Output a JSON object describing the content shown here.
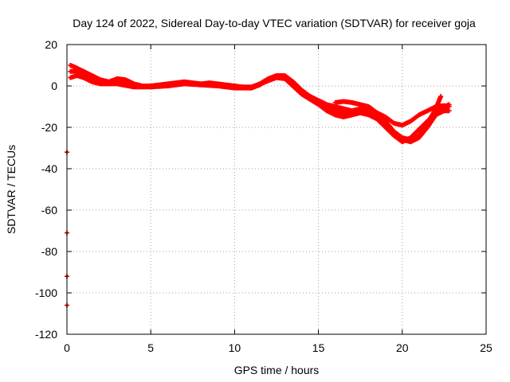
{
  "chart_data": {
    "type": "scatter",
    "title": "Day 124 of 2022, Sidereal Day-to-day VTEC variation (SDTVAR) for receiver goja",
    "xlabel": "GPS time / hours",
    "ylabel": "SDTVAR / TECUs",
    "xlim": [
      0,
      25
    ],
    "ylim": [
      -120,
      20
    ],
    "xticks": [
      0,
      5,
      10,
      15,
      20,
      25
    ],
    "yticks": [
      -120,
      -100,
      -80,
      -60,
      -40,
      -20,
      0,
      20
    ],
    "grid": true,
    "series": [
      {
        "name": "SDTVAR",
        "color": "#ff0000",
        "marker": "plus",
        "tracks": [
          [
            [
              0.2,
              10
            ],
            [
              0.5,
              9
            ],
            [
              1.0,
              7
            ],
            [
              1.5,
              5
            ],
            [
              2.0,
              3
            ],
            [
              2.5,
              2
            ],
            [
              3.0,
              3.5
            ],
            [
              3.5,
              3
            ],
            [
              4.0,
              1
            ],
            [
              4.5,
              0
            ],
            [
              5.0,
              0
            ],
            [
              5.5,
              0.5
            ],
            [
              6.0,
              1
            ],
            [
              6.5,
              1.5
            ],
            [
              7.0,
              2
            ],
            [
              7.5,
              1.5
            ],
            [
              8.0,
              1
            ],
            [
              8.5,
              1.5
            ],
            [
              9.0,
              1
            ],
            [
              9.5,
              0.5
            ],
            [
              10.0,
              0
            ],
            [
              10.5,
              -0.5
            ],
            [
              11.0,
              -0.5
            ],
            [
              11.5,
              1
            ],
            [
              12.0,
              3.5
            ],
            [
              12.5,
              5
            ],
            [
              13.0,
              5
            ],
            [
              13.5,
              2
            ],
            [
              14.0,
              -2
            ],
            [
              14.5,
              -5
            ],
            [
              15.0,
              -7
            ],
            [
              15.5,
              -9
            ],
            [
              16.0,
              -10
            ],
            [
              16.5,
              -11
            ],
            [
              17.0,
              -12
            ],
            [
              17.5,
              -13
            ],
            [
              18.0,
              -13
            ],
            [
              18.5,
              -14
            ],
            [
              19.0,
              -17
            ],
            [
              19.5,
              -22
            ],
            [
              20.0,
              -25
            ],
            [
              20.5,
              -26
            ],
            [
              21.0,
              -24
            ],
            [
              21.5,
              -18
            ],
            [
              22.0,
              -11
            ],
            [
              22.3,
              -5
            ]
          ],
          [
            [
              0.2,
              7
            ],
            [
              0.5,
              7
            ],
            [
              1.0,
              5
            ],
            [
              1.5,
              3
            ],
            [
              2.0,
              2
            ],
            [
              2.5,
              1
            ],
            [
              3.0,
              2
            ],
            [
              3.5,
              2
            ],
            [
              4.0,
              0
            ],
            [
              4.5,
              -0.5
            ],
            [
              5.0,
              0
            ],
            [
              6.0,
              0.5
            ],
            [
              7.0,
              1.5
            ],
            [
              8.0,
              1
            ],
            [
              9.0,
              0.5
            ],
            [
              10.0,
              -0.5
            ],
            [
              11.0,
              -1
            ],
            [
              11.5,
              0.5
            ],
            [
              12.0,
              3
            ],
            [
              12.5,
              4.5
            ],
            [
              13.0,
              4
            ],
            [
              13.5,
              1
            ],
            [
              14.0,
              -3
            ],
            [
              14.5,
              -6
            ],
            [
              15.0,
              -8
            ],
            [
              15.5,
              -10
            ],
            [
              16.0,
              -12
            ],
            [
              16.5,
              -13
            ],
            [
              17.0,
              -12
            ],
            [
              17.5,
              -11
            ],
            [
              18.0,
              -12
            ],
            [
              18.5,
              -15
            ],
            [
              19.0,
              -19
            ],
            [
              19.5,
              -23
            ],
            [
              20.0,
              -26
            ],
            [
              20.5,
              -27
            ],
            [
              21.0,
              -25
            ],
            [
              21.5,
              -20
            ],
            [
              22.0,
              -14
            ],
            [
              22.5,
              -12
            ],
            [
              22.8,
              -12
            ]
          ],
          [
            [
              0.2,
              4
            ],
            [
              0.6,
              5
            ],
            [
              1.0,
              4
            ],
            [
              1.5,
              2
            ],
            [
              2.0,
              1
            ],
            [
              3.0,
              1
            ],
            [
              4.0,
              -0.5
            ],
            [
              5.0,
              -0.5
            ],
            [
              6.0,
              0
            ],
            [
              7.0,
              1
            ],
            [
              8.0,
              0.5
            ],
            [
              9.0,
              0
            ],
            [
              10.0,
              -1
            ],
            [
              11.0,
              -1
            ],
            [
              12.0,
              2.5
            ],
            [
              12.5,
              4
            ],
            [
              13.0,
              3.5
            ],
            [
              14.0,
              -4
            ],
            [
              15.0,
              -9
            ],
            [
              15.5,
              -12
            ],
            [
              16.0,
              -14
            ],
            [
              16.5,
              -15
            ],
            [
              17.0,
              -14
            ],
            [
              17.5,
              -13
            ],
            [
              18.0,
              -14
            ],
            [
              18.5,
              -16
            ],
            [
              19.0,
              -20
            ],
            [
              19.5,
              -24
            ],
            [
              20.0,
              -27
            ],
            [
              20.5,
              -25
            ],
            [
              21.0,
              -21
            ],
            [
              21.5,
              -17
            ],
            [
              22.0,
              -13
            ],
            [
              22.5,
              -10
            ],
            [
              22.8,
              -9
            ]
          ],
          [
            [
              16.0,
              -8
            ],
            [
              16.5,
              -7.5
            ],
            [
              17.0,
              -8
            ],
            [
              17.5,
              -9
            ],
            [
              18.0,
              -10
            ],
            [
              18.5,
              -13
            ],
            [
              19.0,
              -15
            ],
            [
              19.5,
              -18
            ],
            [
              20.0,
              -19
            ],
            [
              20.5,
              -17
            ],
            [
              21.0,
              -14
            ],
            [
              21.5,
              -12
            ],
            [
              22.0,
              -10
            ],
            [
              22.5,
              -9.5
            ],
            [
              22.8,
              -10
            ]
          ],
          [
            [
              0.0,
              -32
            ],
            [
              0.0,
              -71
            ],
            [
              0.0,
              -92
            ],
            [
              0.0,
              -106
            ]
          ]
        ]
      }
    ]
  }
}
